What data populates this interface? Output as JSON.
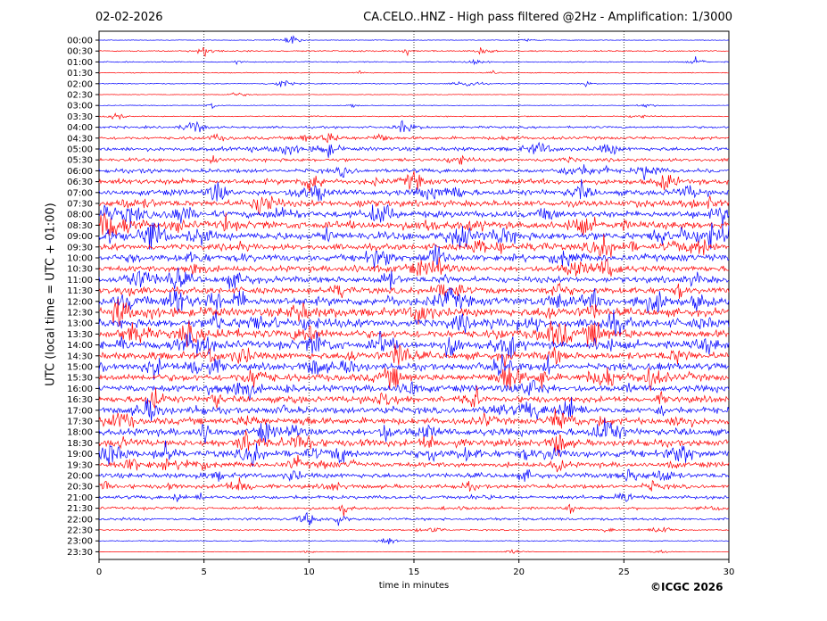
{
  "header": {
    "date": "02-02-2026",
    "title": "CA.CELO..HNZ - High pass filtered @2Hz - Amplification: 1/3000"
  },
  "footer": {
    "copyright": "©ICGC 2026"
  },
  "chart_data": {
    "type": "line",
    "title": "CA.CELO..HNZ - High pass filtered @2Hz - Amplification: 1/3000",
    "xlabel": "time in minutes",
    "ylabel": "UTC (local time = UTC + 01:00)",
    "xlim": [
      0,
      30
    ],
    "x_ticks": [
      0,
      5,
      10,
      15,
      20,
      25,
      30
    ],
    "grid": "vertical dotted at 5-minute ticks",
    "row_labels": [
      "00:00",
      "00:30",
      "01:00",
      "01:30",
      "02:00",
      "02:30",
      "03:00",
      "03:30",
      "04:00",
      "04:30",
      "05:00",
      "05:30",
      "06:00",
      "06:30",
      "07:00",
      "07:30",
      "08:00",
      "08:30",
      "09:00",
      "09:30",
      "10:00",
      "10:30",
      "11:00",
      "11:30",
      "12:00",
      "12:30",
      "13:00",
      "13:30",
      "14:00",
      "14:30",
      "15:00",
      "15:30",
      "16:00",
      "16:30",
      "17:00",
      "17:30",
      "18:00",
      "18:30",
      "19:00",
      "19:30",
      "20:00",
      "20:30",
      "21:00",
      "21:30",
      "22:00",
      "22:30",
      "23:00",
      "23:30"
    ],
    "trace_colors": [
      "#0000ff",
      "#ff0000"
    ],
    "noise_level": [
      0.3,
      0.6,
      0.5,
      0.4,
      0.4,
      0.3,
      0.3,
      0.5,
      1.0,
      1.4,
      1.8,
      1.5,
      1.8,
      2.4,
      2.6,
      2.8,
      3.0,
      3.5,
      3.5,
      2.8,
      3.0,
      2.6,
      2.8,
      2.8,
      3.8,
      3.6,
      3.8,
      3.6,
      3.6,
      3.2,
      3.0,
      3.2,
      3.0,
      2.8,
      2.8,
      3.0,
      3.2,
      3.0,
      3.2,
      2.2,
      2.2,
      1.8,
      1.6,
      1.2,
      1.2,
      0.6,
      0.4,
      0.2
    ]
  }
}
